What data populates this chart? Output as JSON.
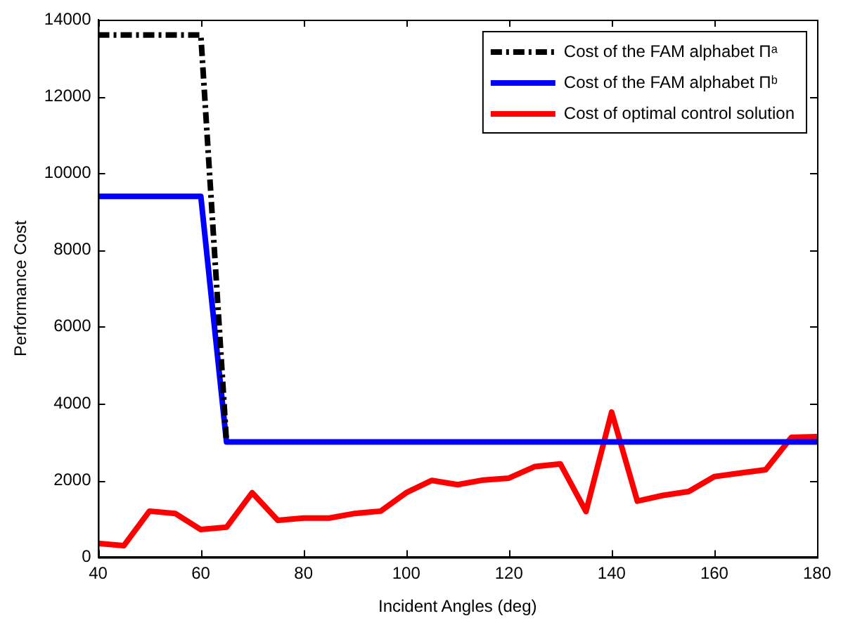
{
  "chart_data": {
    "type": "line",
    "xlabel": "Incident Angles (deg)",
    "ylabel": "Performance Cost",
    "xlim": [
      40,
      180
    ],
    "xticks": [
      40,
      60,
      80,
      100,
      120,
      140,
      160,
      180
    ],
    "ylim": [
      0,
      14000
    ],
    "yticks": [
      0,
      2000,
      4000,
      6000,
      8000,
      10000,
      12000,
      14000
    ],
    "grid": false,
    "legend": "top right",
    "marker": "none",
    "series": [
      {
        "name": "Cost of the FAM alphabet Πᵃ",
        "color": "#000000",
        "line_style": "dashdot",
        "x": [
          40,
          60,
          65
        ],
        "values": [
          13600,
          13600,
          3000
        ]
      },
      {
        "name": "Cost of the FAM alphabet Πᵇ",
        "color": "#0000ff",
        "line_style": "solid",
        "x": [
          40,
          60,
          65,
          180
        ],
        "values": [
          9400,
          9400,
          3000,
          3000
        ]
      },
      {
        "name": "Cost of optimal control solution",
        "color": "#ff0000",
        "line_style": "solid",
        "x": [
          40,
          45,
          50,
          55,
          60,
          65,
          70,
          75,
          80,
          85,
          90,
          95,
          100,
          105,
          110,
          115,
          120,
          125,
          130,
          135,
          140,
          145,
          150,
          155,
          160,
          165,
          170,
          175,
          180
        ],
        "values": [
          360,
          300,
          1200,
          1140,
          720,
          780,
          1680,
          960,
          1020,
          1020,
          1140,
          1200,
          1680,
          2000,
          1890,
          2010,
          2060,
          2360,
          2430,
          1190,
          3780,
          1460,
          1610,
          1710,
          2100,
          2190,
          2280,
          3120,
          3140
        ]
      }
    ]
  }
}
